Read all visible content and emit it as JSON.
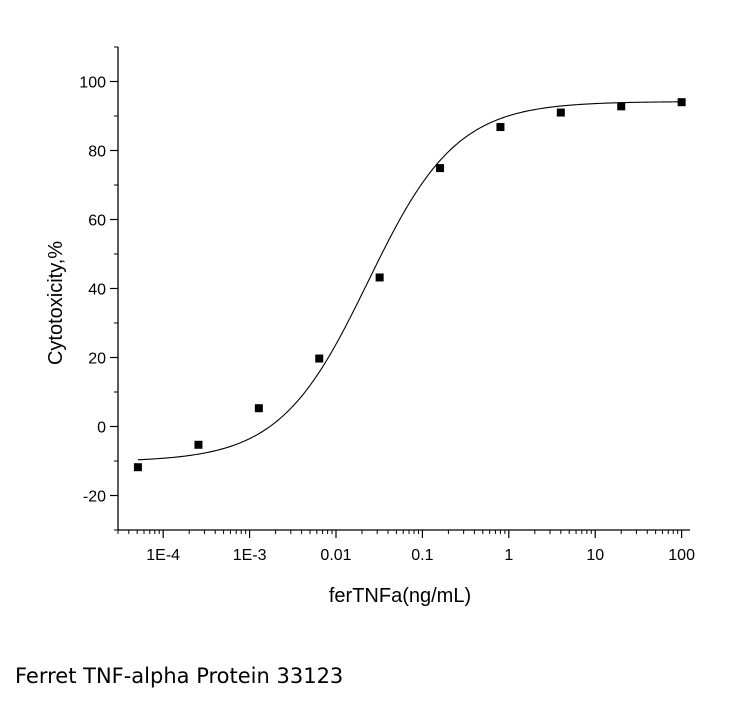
{
  "chart_data": {
    "type": "scatter",
    "xscale": "log",
    "xlabel": "ferTNFa(ng/mL)",
    "ylabel": "Cytotoxicity,%",
    "xlim": [
      3e-05,
      125
    ],
    "ylim": [
      -30,
      110
    ],
    "x_tick_labels": [
      {
        "value": 0.0001,
        "label": "1E-4"
      },
      {
        "value": 0.001,
        "label": "1E-3"
      },
      {
        "value": 0.01,
        "label": "0.01"
      },
      {
        "value": 0.1,
        "label": "0.1"
      },
      {
        "value": 1,
        "label": "1"
      },
      {
        "value": 10,
        "label": "10"
      },
      {
        "value": 100,
        "label": "100"
      }
    ],
    "y_ticks": [
      -20,
      0,
      20,
      40,
      60,
      80,
      100
    ],
    "series": [
      {
        "marker": "square",
        "color": "#000000",
        "x": [
          5.1e-05,
          0.000256,
          0.00128,
          0.0064,
          0.032,
          0.16,
          0.8,
          4,
          20,
          100
        ],
        "y": [
          -11.8,
          -5.3,
          5.3,
          19.7,
          43.2,
          74.9,
          86.8,
          91.0,
          92.8,
          94.0
        ]
      }
    ],
    "fit_curve": {
      "type": "logistic-4pl",
      "bottom": -10.2,
      "top": 94.2,
      "ec50": 0.0235,
      "hill": 0.85,
      "color": "#000000"
    },
    "grid": false
  },
  "caption": "Ferret TNF-alpha Protein 33123"
}
